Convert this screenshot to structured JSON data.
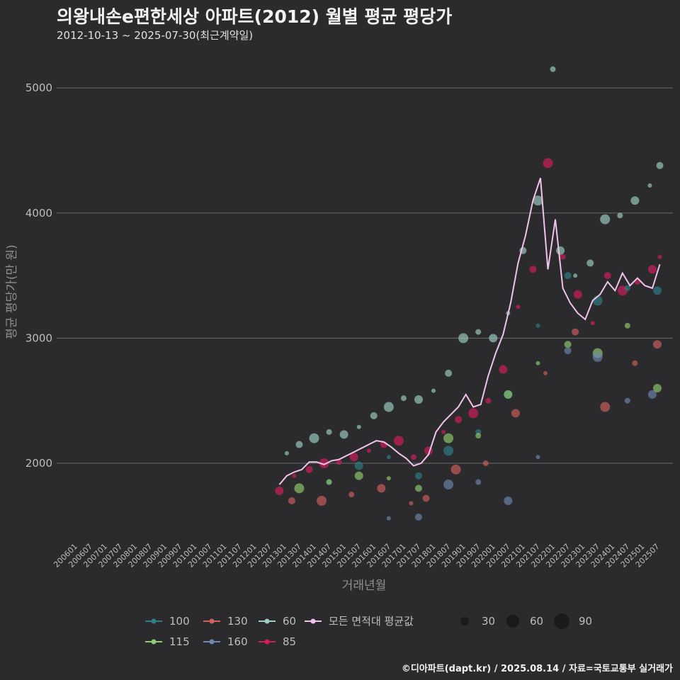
{
  "header": {
    "title": "의왕내손e편한세상 아파트(2012) 월별 평균 평당가",
    "subtitle": "2012-10-13 ~ 2025-07-30(최근계약일)"
  },
  "footer": {
    "credit": "©디아파트(dapt.kr) / 2025.08.14 / 자료=국토교통부 실거래가"
  },
  "colors": {
    "background": "#2b2b2d",
    "grid": "#6a6a6a",
    "size_60": "#9ecfc6",
    "size_85": "#d81b5f",
    "size_100": "#2e7f88",
    "size_115": "#8fce6e",
    "size_130": "#d0605e",
    "size_160": "#6f87b0",
    "average": "#f0c2ec"
  },
  "chart_data": {
    "type": "scatter",
    "title": "의왕내손e편한세상 아파트(2012) 월별 평균 평당가",
    "subtitle": "2012-10-13 ~ 2025-07-30(최근계약일)",
    "xlabel": "거래년월",
    "ylabel": "평균 평당가(만 원)",
    "ylim": [
      1400,
      5250
    ],
    "yticks": [
      2000,
      3000,
      4000,
      5000
    ],
    "x_range": [
      "2006-01",
      "2025-08"
    ],
    "xtick_labels": [
      "200601",
      "200607",
      "200701",
      "200707",
      "200801",
      "200807",
      "200901",
      "200907",
      "201001",
      "201007",
      "201101",
      "201107",
      "201201",
      "201207",
      "201301",
      "201307",
      "201401",
      "201407",
      "201501",
      "201507",
      "201601",
      "201607",
      "201701",
      "201707",
      "201801",
      "201807",
      "201901",
      "201907",
      "202001",
      "202007",
      "202101",
      "202107",
      "202201",
      "202207",
      "202301",
      "202307",
      "202401",
      "202407",
      "202501",
      "202507"
    ],
    "grid": true,
    "legend_position": "bottom",
    "legend_series": [
      "100",
      "115",
      "130",
      "160",
      "60",
      "85",
      "모든 면적대 평균값"
    ],
    "size_legend": [
      30,
      60,
      90
    ],
    "average_series": {
      "name": "모든 면적대 평균값",
      "x": [
        "2012-10",
        "2013-01",
        "2013-04",
        "2013-07",
        "2013-10",
        "2014-01",
        "2014-04",
        "2014-07",
        "2014-10",
        "2015-01",
        "2015-04",
        "2015-07",
        "2015-10",
        "2016-01",
        "2016-04",
        "2016-07",
        "2016-10",
        "2017-01",
        "2017-04",
        "2017-07",
        "2017-10",
        "2018-01",
        "2018-04",
        "2018-07",
        "2018-10",
        "2019-01",
        "2019-04",
        "2019-07",
        "2019-10",
        "2020-01",
        "2020-04",
        "2020-07",
        "2020-10",
        "2021-01",
        "2021-04",
        "2021-07",
        "2021-10",
        "2022-01",
        "2022-04",
        "2022-07",
        "2022-10",
        "2023-01",
        "2023-04",
        "2023-07",
        "2023-10",
        "2024-01",
        "2024-04",
        "2024-07",
        "2024-10",
        "2025-01",
        "2025-04",
        "2025-07"
      ],
      "y": [
        1830,
        1900,
        1930,
        1950,
        2010,
        2010,
        1990,
        2020,
        2030,
        2060,
        2090,
        2120,
        2150,
        2180,
        2170,
        2130,
        2080,
        2040,
        1980,
        2000,
        2070,
        2250,
        2330,
        2390,
        2450,
        2550,
        2450,
        2470,
        2700,
        2880,
        3030,
        3280,
        3600,
        3820,
        4100,
        4280,
        3550,
        3950,
        3400,
        3280,
        3200,
        3150,
        3300,
        3350,
        3450,
        3380,
        3520,
        3420,
        3480,
        3420,
        3400,
        3590
      ]
    },
    "series": [
      {
        "name": "60",
        "x": [
          "2013-01",
          "2013-06",
          "2013-12",
          "2014-06",
          "2014-12",
          "2015-06",
          "2015-12",
          "2016-06",
          "2016-12",
          "2017-06",
          "2017-12",
          "2018-06",
          "2018-12",
          "2019-06",
          "2019-12",
          "2020-06",
          "2020-12",
          "2021-06",
          "2021-12",
          "2022-03",
          "2022-09",
          "2023-03",
          "2023-09",
          "2024-03",
          "2024-09",
          "2025-03",
          "2025-07"
        ],
        "y": [
          2080,
          2150,
          2200,
          2250,
          2230,
          2290,
          2380,
          2450,
          2520,
          2510,
          2580,
          2720,
          3000,
          3050,
          3000,
          3200,
          3700,
          4100,
          5150,
          3700,
          3500,
          3600,
          3950,
          3980,
          4100,
          4220,
          4380
        ]
      },
      {
        "name": "85",
        "x": [
          "2012-10",
          "2013-04",
          "2013-10",
          "2014-04",
          "2014-10",
          "2015-04",
          "2015-10",
          "2016-04",
          "2016-10",
          "2017-04",
          "2017-10",
          "2018-04",
          "2018-10",
          "2019-04",
          "2019-10",
          "2020-04",
          "2020-10",
          "2021-04",
          "2021-10",
          "2022-04",
          "2022-10",
          "2023-04",
          "2023-10",
          "2024-04",
          "2024-10",
          "2025-04",
          "2025-07"
        ],
        "y": [
          1780,
          1900,
          1950,
          2000,
          2010,
          2050,
          2100,
          2150,
          2180,
          2050,
          2100,
          2250,
          2350,
          2400,
          2500,
          2750,
          3250,
          3550,
          4400,
          3650,
          3350,
          3120,
          3500,
          3380,
          3450,
          3550,
          3650
        ]
      },
      {
        "name": "100",
        "x": [
          "2014-06",
          "2015-06",
          "2016-06",
          "2017-06",
          "2018-06",
          "2019-06",
          "2020-06",
          "2021-06",
          "2022-06",
          "2023-06",
          "2024-06",
          "2025-06"
        ],
        "y": [
          1850,
          1980,
          2050,
          1900,
          2100,
          2250,
          2550,
          3100,
          3500,
          3300,
          3400,
          3380
        ]
      },
      {
        "name": "115",
        "x": [
          "2013-06",
          "2014-06",
          "2015-06",
          "2016-06",
          "2017-06",
          "2018-06",
          "2019-06",
          "2020-06",
          "2021-06",
          "2022-06",
          "2023-06",
          "2024-06",
          "2025-06"
        ],
        "y": [
          1800,
          1850,
          1900,
          1880,
          1800,
          2200,
          2220,
          2550,
          2800,
          2950,
          2880,
          3100,
          2600
        ]
      },
      {
        "name": "130",
        "x": [
          "2013-03",
          "2014-03",
          "2015-03",
          "2016-03",
          "2017-03",
          "2017-09",
          "2018-09",
          "2019-09",
          "2020-09",
          "2021-09",
          "2022-09",
          "2023-09",
          "2024-09",
          "2025-06"
        ],
        "y": [
          1700,
          1700,
          1750,
          1800,
          1680,
          1720,
          1950,
          2000,
          2400,
          2720,
          3050,
          2450,
          2800,
          2950
        ]
      },
      {
        "name": "160",
        "x": [
          "2016-06",
          "2017-06",
          "2018-06",
          "2019-06",
          "2020-06",
          "2021-06",
          "2022-06",
          "2023-06",
          "2024-06",
          "2025-04"
        ],
        "y": [
          1560,
          1570,
          1830,
          1850,
          1700,
          2050,
          2900,
          2850,
          2500,
          2550
        ]
      }
    ]
  }
}
